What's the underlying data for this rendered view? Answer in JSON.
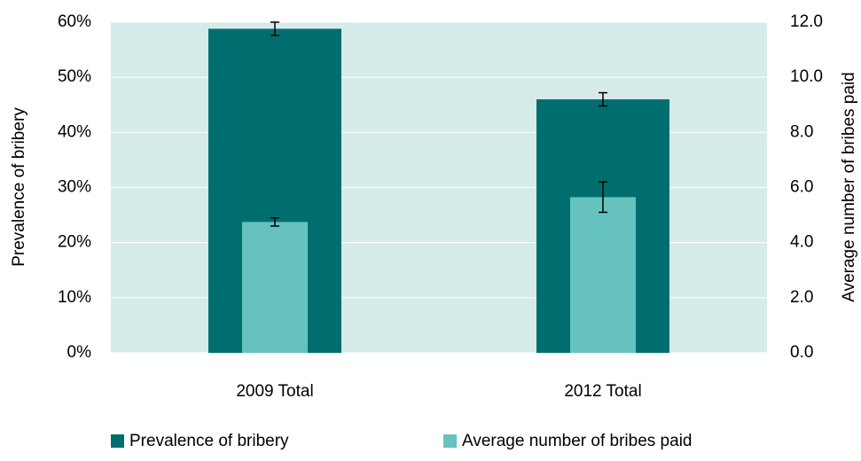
{
  "chart_data": {
    "type": "bar",
    "categories": [
      "2009 Total",
      "2012 Total"
    ],
    "series": [
      {
        "name": "Prevalence of bribery",
        "color": "#006e6e",
        "values": [
          58.8,
          46.0
        ],
        "errors": [
          1.2,
          1.2
        ]
      },
      {
        "name": "Average number of bribes paid",
        "color": "#66c2bf",
        "values": [
          4.75,
          5.65
        ],
        "errors": [
          0.15,
          0.55
        ],
        "axis": "y2"
      }
    ],
    "ylabel": "Prevalence of bribery",
    "y2label": "Average number of bribes paid",
    "ylim": [
      0,
      60
    ],
    "yticks": [
      {
        "value": 0,
        "label": "0%"
      },
      {
        "value": 10,
        "label": "10%"
      },
      {
        "value": 20,
        "label": "20%"
      },
      {
        "value": 30,
        "label": "30%"
      },
      {
        "value": 40,
        "label": "40%"
      },
      {
        "value": 50,
        "label": "50%"
      },
      {
        "value": 60,
        "label": "60%"
      }
    ],
    "y2lim": [
      0,
      12
    ],
    "y2ticks": [
      {
        "value": 0,
        "label": "0.0"
      },
      {
        "value": 2,
        "label": "2.0"
      },
      {
        "value": 4,
        "label": "4.0"
      },
      {
        "value": 6,
        "label": "6.0"
      },
      {
        "value": 8,
        "label": "8.0"
      },
      {
        "value": 10,
        "label": "10.0"
      },
      {
        "value": 12,
        "label": "12.0"
      }
    ],
    "grid": true,
    "plot_background": "#d5ebea",
    "legend": "bottom"
  }
}
